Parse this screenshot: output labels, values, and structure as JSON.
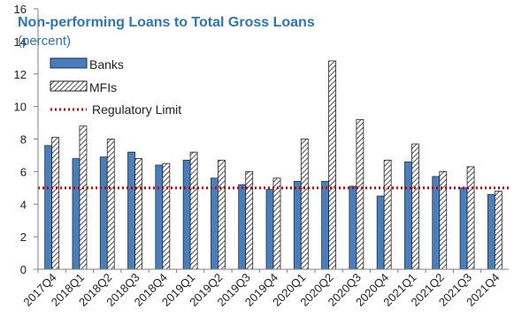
{
  "chart_data": {
    "type": "bar",
    "title": "Non-performing Loans to Total Gross Loans",
    "subtitle": "(percent)",
    "xlabel": "",
    "ylabel": "",
    "ylim": [
      0,
      16
    ],
    "yticks": [
      "0",
      "2",
      "4",
      "6",
      "8",
      "10",
      "12",
      "14",
      "16"
    ],
    "categories": [
      "2017Q4",
      "2018Q1",
      "2018Q2",
      "2018Q3",
      "2018Q4",
      "2019Q1",
      "2019Q2",
      "2019Q3",
      "2019Q4",
      "2020Q1",
      "2020Q2",
      "2020Q3",
      "2020Q4",
      "2021Q1",
      "2021Q2",
      "2021Q3",
      "2021Q4"
    ],
    "series": [
      {
        "name": "Banks",
        "style": "solid",
        "values": [
          7.6,
          6.8,
          6.9,
          7.2,
          6.4,
          6.7,
          5.6,
          5.2,
          4.9,
          5.4,
          5.4,
          5.1,
          4.5,
          6.6,
          5.7,
          5.0,
          4.6
        ]
      },
      {
        "name": "MFIs",
        "style": "hatched",
        "values": [
          8.1,
          8.8,
          8.0,
          6.8,
          6.5,
          7.2,
          6.7,
          6.0,
          5.6,
          8.0,
          12.8,
          9.2,
          6.7,
          7.7,
          6.0,
          6.3,
          4.8
        ]
      }
    ],
    "reference_line": {
      "name": "Regulatory Limit",
      "value": 5,
      "style": "dotted"
    },
    "grid": false,
    "legend_position": "top-left"
  },
  "colors": {
    "banks": "#4A7EBB",
    "banks_stroke": "#1F2F4A",
    "mfis_hatch": "#222222",
    "limit": "#C00000",
    "title": "#2E75B6",
    "axis": "#7F7F7F"
  }
}
